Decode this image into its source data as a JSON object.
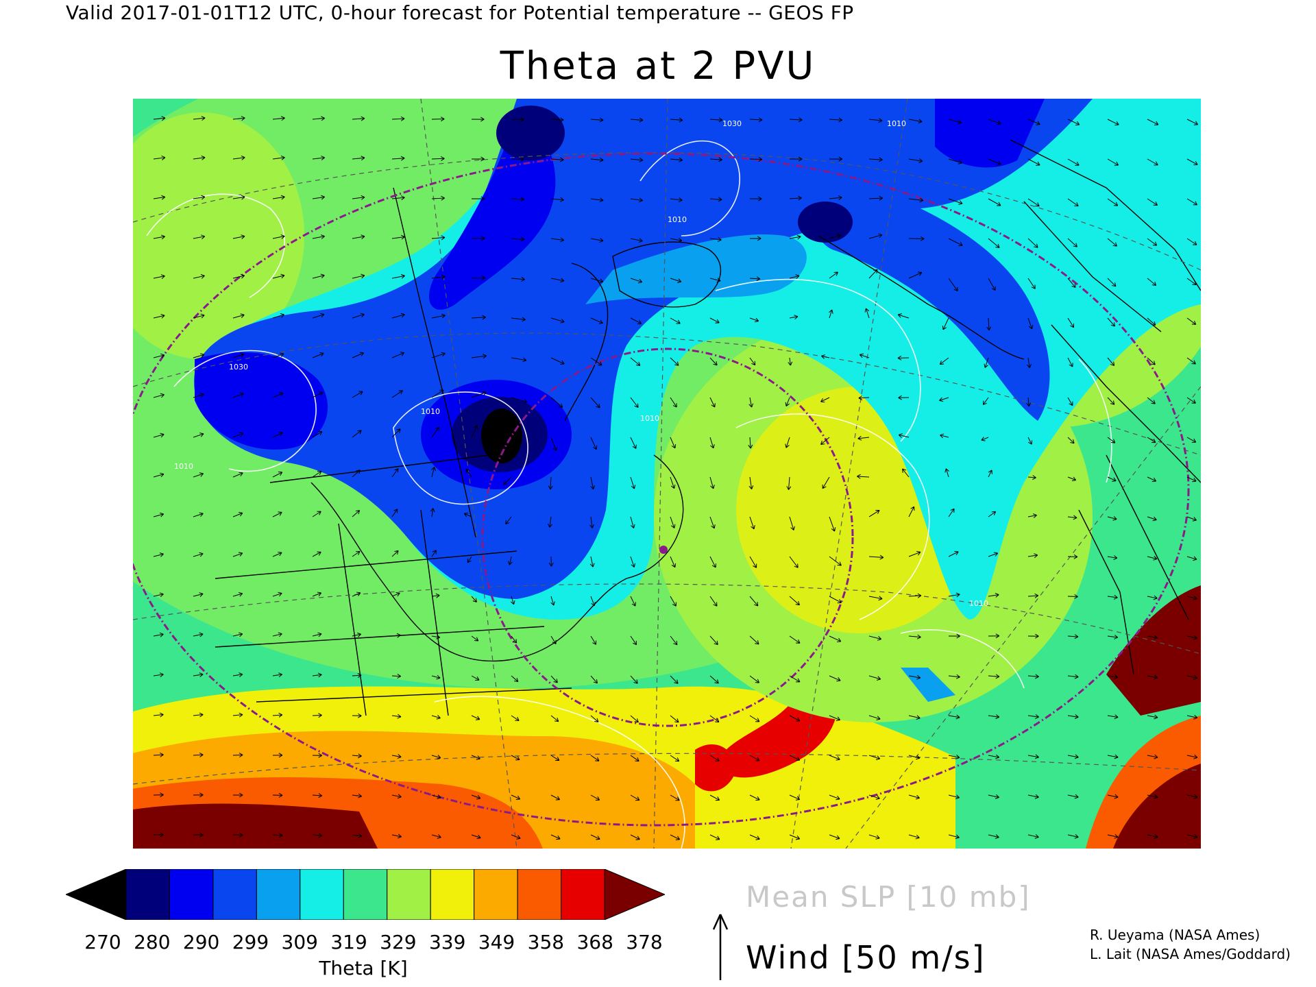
{
  "header": {
    "valid_line": "Valid 2017-01-01T12 UTC, 0-hour forecast for Potential temperature -- GEOS FP",
    "title": "Theta at 2 PVU"
  },
  "colorbar": {
    "title": "Theta [K]",
    "ticks": [
      "270",
      "280",
      "290",
      "299",
      "309",
      "319",
      "329",
      "339",
      "349",
      "358",
      "368",
      "378"
    ],
    "colors": [
      "#000000",
      "#00007a",
      "#0000f0",
      "#0a46f0",
      "#0aa0f0",
      "#14eee6",
      "#3ce68c",
      "#a0f046",
      "#f0f00a",
      "#fcaa00",
      "#fa5a00",
      "#e60000",
      "#7a0000"
    ]
  },
  "legend": {
    "slp": "Mean SLP [10 mb]",
    "wind": "Wind [50 m/s]"
  },
  "credits": [
    "R. Ueyama (NASA Ames)",
    "L. Lait (NASA Ames/Goddard)"
  ],
  "map": {
    "isobar_labels": [
      "1030",
      "1010",
      "1010",
      "1010",
      "1030",
      "1010",
      "1010",
      "1010"
    ],
    "colors": {
      "background_field": "#3ce68c",
      "isobar": "#ffffff",
      "coastline": "#000000",
      "tropopause_dots": "#8a1a8a"
    }
  }
}
